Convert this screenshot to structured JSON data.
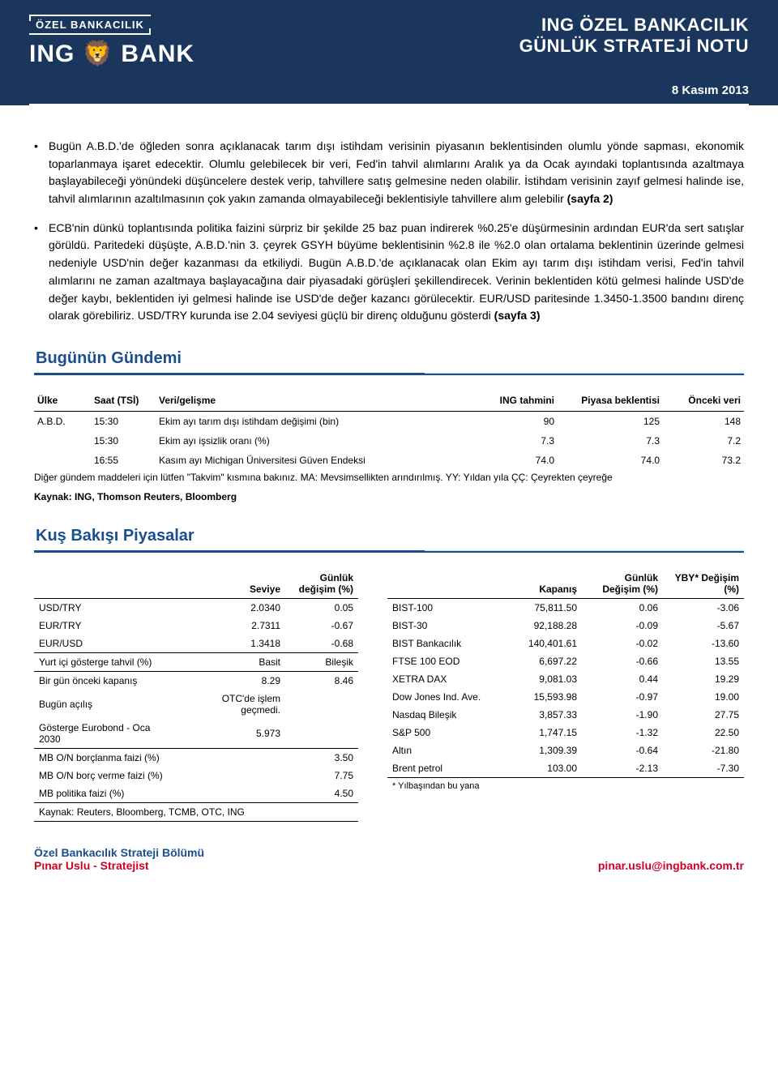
{
  "header": {
    "logo_ozel": "ÖZEL BANKACILIK",
    "logo_bank": "ING 🦁 BANK",
    "title_l1": "ING ÖZEL BANKACILIK",
    "title_l2": "GÜNLÜK STRATEJİ NOTU",
    "date": "8 Kasım 2013"
  },
  "bullets": [
    {
      "text": "Bugün A.B.D.'de öğleden sonra açıklanacak tarım dışı istihdam verisinin piyasanın beklentisinden olumlu yönde sapması, ekonomik toparlanmaya işaret edecektir. Olumlu gelebilecek bir veri, Fed'in tahvil alımlarını Aralık ya da Ocak ayındaki toplantısında azaltmaya başlayabileceği yönündeki düşüncelere destek verip, tahvillere satış gelmesine neden olabilir. İstihdam verisinin zayıf gelmesi halinde ise, tahvil alımlarının azaltılmasının çok yakın zamanda olmayabileceği beklentisiyle tahvillere alım gelebilir ",
      "bold_tail": "(sayfa 2)"
    },
    {
      "text": "ECB'nin dünkü toplantısında politika faizini sürpriz bir şekilde 25 baz puan indirerek %0.25'e düşürmesinin ardından EUR'da sert satışlar görüldü. Paritedeki düşüşte, A.B.D.'nin 3. çeyrek GSYH büyüme beklentisinin %2.8 ile %2.0 olan ortalama beklentinin üzerinde gelmesi nedeniyle USD'nin değer kazanması da etkiliydi. Bugün A.B.D.'de açıklanacak olan Ekim ayı tarım dışı istihdam verisi, Fed'in tahvil alımlarını ne zaman azaltmaya başlayacağına dair piyasadaki görüşleri şekillendirecek. Verinin beklentiden kötü gelmesi halinde USD'de değer kaybı, beklentiden iyi gelmesi halinde ise USD'de değer kazancı görülecektir. EUR/USD paritesinde 1.3450-1.3500 bandını direnç olarak görebiliriz. USD/TRY kurunda ise 2.04 seviyesi güçlü bir direnç olduğunu gösterdi ",
      "bold_tail": "(sayfa 3)"
    }
  ],
  "sections": {
    "agenda_title": "Bugünün Gündemi",
    "markets_title": "Kuş Bakışı Piyasalar"
  },
  "agenda": {
    "headers": {
      "country": "Ülke",
      "time": "Saat (TSİ)",
      "event": "Veri/gelişme",
      "ing": "ING tahmini",
      "cons": "Piyasa beklentisi",
      "prev": "Önceki veri"
    },
    "rows": [
      {
        "country": "A.B.D.",
        "time": "15:30",
        "event": "Ekim ayı tarım dışı istihdam değişimi (bin)",
        "ing": "90",
        "cons": "125",
        "prev": "148"
      },
      {
        "country": "",
        "time": "15:30",
        "event": "Ekim ayı işsizlik oranı (%)",
        "ing": "7.3",
        "cons": "7.3",
        "prev": "7.2"
      },
      {
        "country": "",
        "time": "16:55",
        "event": "Kasım ayı Michigan Üniversitesi Güven Endeksi",
        "ing": "74.0",
        "cons": "74.0",
        "prev": "73.2"
      }
    ],
    "note": "Diğer gündem maddeleri için lütfen \"Takvim\" kısmına bakınız.     MA: Mevsimsellikten arındırılmış.     YY: Yıldan yıla     ÇÇ: Çeyrekten çeyreğe",
    "source": "Kaynak: ING, Thomson Reuters, Bloomberg"
  },
  "markets_left": {
    "headers": {
      "level": "Seviye",
      "chg": "Günlük değişim (%)"
    },
    "rows1": [
      {
        "label": "USD/TRY",
        "c1": "2.0340",
        "c2": "0.05"
      },
      {
        "label": "EUR/TRY",
        "c1": "2.7311",
        "c2": "-0.67"
      },
      {
        "label": "EUR/USD",
        "c1": "1.3418",
        "c2": "-0.68"
      }
    ],
    "row_bond_header": {
      "label": "Yurt içi gösterge tahvil (%)",
      "c1": "Basit",
      "c2": "Bileşik"
    },
    "rows2": [
      {
        "label": "Bir gün önceki kapanış",
        "c1": "8.29",
        "c2": "8.46"
      },
      {
        "label": "Bugün açılış",
        "c1": "OTC'de işlem geçmedi.",
        "c2": ""
      },
      {
        "label": "Gösterge Eurobond - Oca 2030",
        "c1": "5.973",
        "c2": ""
      }
    ],
    "rows3": [
      {
        "label": "MB O/N borçlanma faizi (%)",
        "c1": "",
        "c2": "3.50"
      },
      {
        "label": "MB O/N borç verme faizi (%)",
        "c1": "",
        "c2": "7.75"
      },
      {
        "label": "MB politika faizi (%)",
        "c1": "",
        "c2": "4.50"
      }
    ],
    "source": "Kaynak: Reuters, Bloomberg, TCMB, OTC, ING"
  },
  "markets_right": {
    "headers": {
      "close": "Kapanış",
      "dchg": "Günlük Değişim (%)",
      "yby": "YBY* Değişim (%)"
    },
    "rows": [
      {
        "label": "BIST-100",
        "c1": "75,811.50",
        "c2": "0.06",
        "c3": "-3.06"
      },
      {
        "label": "BIST-30",
        "c1": "92,188.28",
        "c2": "-0.09",
        "c3": "-5.67"
      },
      {
        "label": "BIST Bankacılık",
        "c1": "140,401.61",
        "c2": "-0.02",
        "c3": "-13.60"
      },
      {
        "label": "FTSE 100 EOD",
        "c1": "6,697.22",
        "c2": "-0.66",
        "c3": "13.55"
      },
      {
        "label": "XETRA DAX",
        "c1": "9,081.03",
        "c2": "0.44",
        "c3": "19.29"
      },
      {
        "label": "Dow Jones Ind. Ave.",
        "c1": "15,593.98",
        "c2": "-0.97",
        "c3": "19.00"
      },
      {
        "label": "Nasdaq Bileşik",
        "c1": "3,857.33",
        "c2": "-1.90",
        "c3": "27.75"
      },
      {
        "label": "S&P 500",
        "c1": "1,747.15",
        "c2": "-1.32",
        "c3": "22.50"
      },
      {
        "label": "Altın",
        "c1": "1,309.39",
        "c2": "-0.64",
        "c3": "-21.80"
      },
      {
        "label": "Brent petrol",
        "c1": "103.00",
        "c2": "-2.13",
        "c3": "-7.30"
      }
    ],
    "footnote": "* Yılbaşından bu yana"
  },
  "footer": {
    "l1": "Özel Bankacılık Strateji Bölümü",
    "l2": "Pınar Uslu - Stratejist",
    "email": "pinar.uslu@ingbank.com.tr"
  },
  "colors": {
    "headerBg": "#1a365d",
    "accent": "#1a4e8e",
    "red": "#c02"
  }
}
